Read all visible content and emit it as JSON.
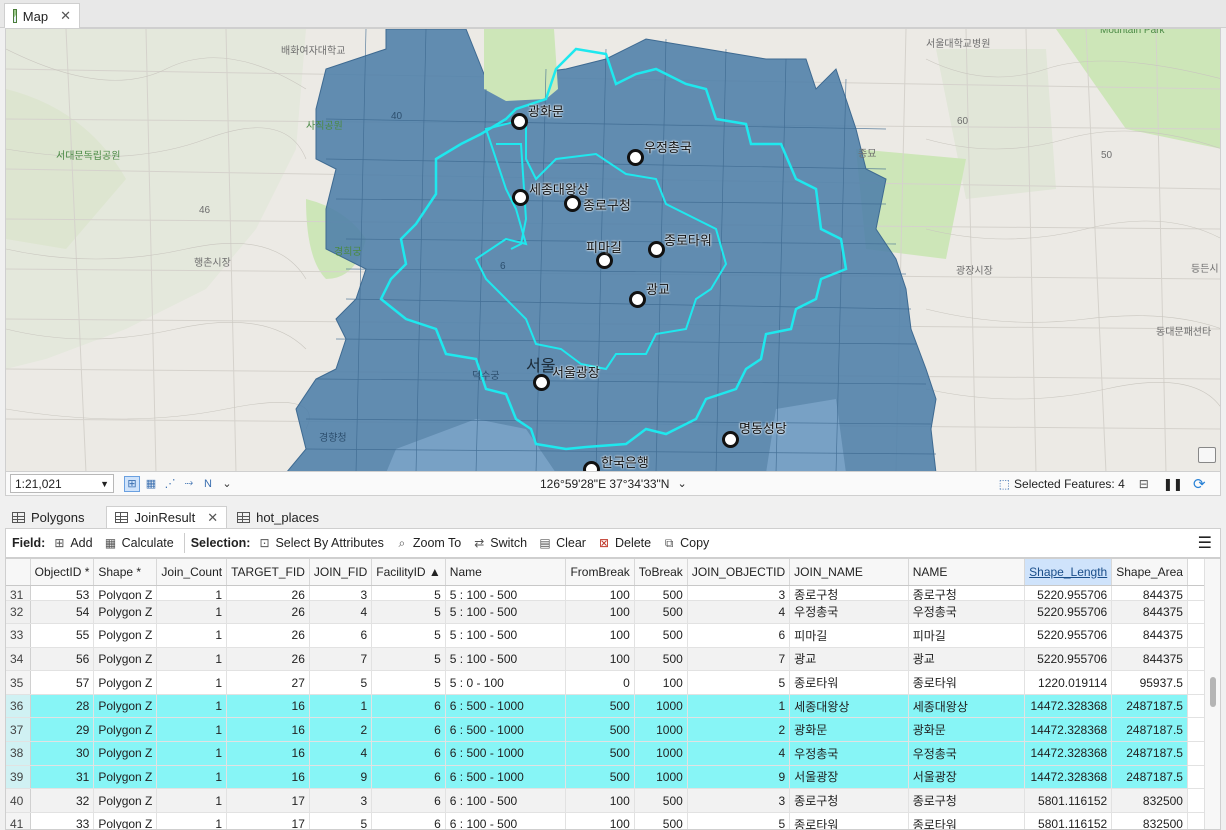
{
  "map_tab": {
    "title": "Map"
  },
  "map": {
    "points": [
      {
        "label": "광화문"
      },
      {
        "label": "우정총국"
      },
      {
        "label": "세종대왕상"
      },
      {
        "label": "종로구청"
      },
      {
        "label": "피마길"
      },
      {
        "label": "종로타워"
      },
      {
        "label": "광교"
      },
      {
        "label": "서울광장"
      },
      {
        "label": "명동성당"
      },
      {
        "label": "한국은행"
      }
    ],
    "basemap_labels": [
      "배화여자대학교",
      "사직공원",
      "서대문독립공원",
      "경희궁",
      "행촌시장",
      "서울대학교병원",
      "종묘",
      "광장시장",
      "동대문패션타",
      "등든시",
      "Mountain Park",
      "덕수궁",
      "경향청",
      "서울",
      "우정총국",
      "40",
      "46",
      "50",
      "60",
      "6"
    ],
    "colors": {
      "service_area": "#4d7ea8",
      "outline": "#1ee8ee",
      "park": "#cde6b8"
    }
  },
  "map_status": {
    "scale": "1:21,021",
    "coordinates": "126°59'28\"E 37°34'33\"N",
    "selected_features": "Selected Features: 4"
  },
  "table_tabs": [
    {
      "label": "Polygons",
      "active": false
    },
    {
      "label": "JoinResult",
      "active": true
    },
    {
      "label": "hot_places",
      "active": false
    }
  ],
  "toolbar": {
    "field_label": "Field:",
    "add": "Add",
    "calculate": "Calculate",
    "selection_label": "Selection:",
    "select_by_attributes": "Select By Attributes",
    "zoom_to": "Zoom To",
    "switch": "Switch",
    "clear": "Clear",
    "delete": "Delete",
    "copy": "Copy"
  },
  "table": {
    "columns": [
      "ObjectID *",
      "Shape *",
      "Join_Count",
      "TARGET_FID",
      "JOIN_FID",
      "FacilityID ▲",
      "Name",
      "FromBreak",
      "ToBreak",
      "JOIN_OBJECTID",
      "JOIN_NAME",
      "NAME",
      "Shape_Length",
      "Shape_Area"
    ],
    "cut_row": [
      "31",
      "53",
      "Polygon Z",
      "1",
      "26",
      "3",
      "5",
      "5 : 100 - 500",
      "100",
      "500",
      "3",
      "종로구청",
      "종로구청",
      "5220.955706",
      "844375"
    ],
    "rows": [
      {
        "n": "32",
        "cells": [
          "54",
          "Polygon Z",
          "1",
          "26",
          "4",
          "5",
          "5 : 100 - 500",
          "100",
          "500",
          "4",
          "우정총국",
          "우정총국",
          "5220.955706",
          "844375"
        ],
        "state": "alt"
      },
      {
        "n": "33",
        "cells": [
          "55",
          "Polygon Z",
          "1",
          "26",
          "6",
          "5",
          "5 : 100 - 500",
          "100",
          "500",
          "6",
          "피마길",
          "피마길",
          "5220.955706",
          "844375"
        ],
        "state": ""
      },
      {
        "n": "34",
        "cells": [
          "56",
          "Polygon Z",
          "1",
          "26",
          "7",
          "5",
          "5 : 100 - 500",
          "100",
          "500",
          "7",
          "광교",
          "광교",
          "5220.955706",
          "844375"
        ],
        "state": "alt"
      },
      {
        "n": "35",
        "cells": [
          "57",
          "Polygon Z",
          "1",
          "27",
          "5",
          "5",
          "5 : 0 - 100",
          "0",
          "100",
          "5",
          "종로타워",
          "종로타워",
          "1220.019114",
          "95937.5"
        ],
        "state": ""
      },
      {
        "n": "36",
        "cells": [
          "28",
          "Polygon Z",
          "1",
          "16",
          "1",
          "6",
          "6 : 500 - 1000",
          "500",
          "1000",
          "1",
          "세종대왕상",
          "세종대왕상",
          "14472.328368",
          "2487187.5"
        ],
        "state": "sel"
      },
      {
        "n": "37",
        "cells": [
          "29",
          "Polygon Z",
          "1",
          "16",
          "2",
          "6",
          "6 : 500 - 1000",
          "500",
          "1000",
          "2",
          "광화문",
          "광화문",
          "14472.328368",
          "2487187.5"
        ],
        "state": "sel"
      },
      {
        "n": "38",
        "cells": [
          "30",
          "Polygon Z",
          "1",
          "16",
          "4",
          "6",
          "6 : 500 - 1000",
          "500",
          "1000",
          "4",
          "우정총국",
          "우정총국",
          "14472.328368",
          "2487187.5"
        ],
        "state": "sel"
      },
      {
        "n": "39",
        "cells": [
          "31",
          "Polygon Z",
          "1",
          "16",
          "9",
          "6",
          "6 : 500 - 1000",
          "500",
          "1000",
          "9",
          "서울광장",
          "서울광장",
          "14472.328368",
          "2487187.5"
        ],
        "state": "sel"
      },
      {
        "n": "40",
        "cells": [
          "32",
          "Polygon Z",
          "1",
          "17",
          "3",
          "6",
          "6 : 100 - 500",
          "100",
          "500",
          "3",
          "종로구청",
          "종로구청",
          "5801.116152",
          "832500"
        ],
        "state": "alt"
      },
      {
        "n": "41",
        "cells": [
          "33",
          "Polygon Z",
          "1",
          "17",
          "5",
          "6",
          "6 : 100 - 500",
          "100",
          "500",
          "5",
          "종로타워",
          "종로타워",
          "5801.116152",
          "832500"
        ],
        "state": ""
      }
    ]
  }
}
